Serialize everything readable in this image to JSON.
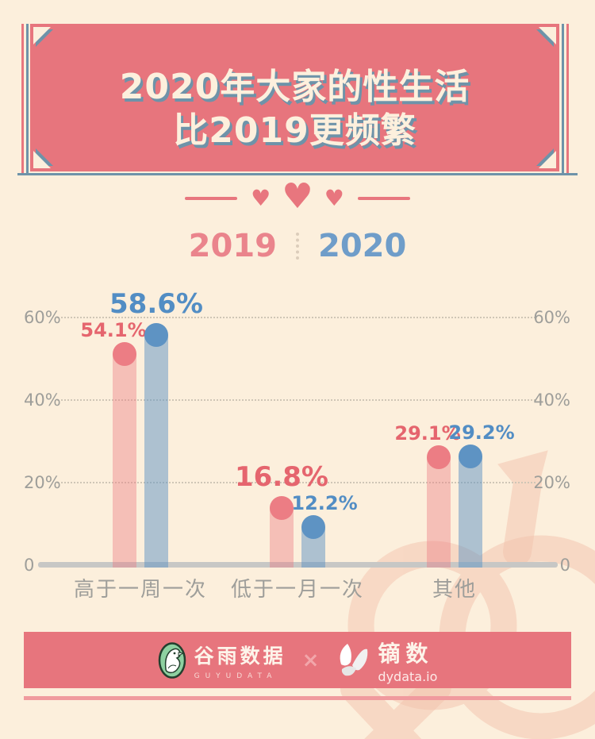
{
  "page": {
    "background": "#fcefdc"
  },
  "header": {
    "title_line1": "2020年大家的性生活",
    "title_line2": "比2019更频繁",
    "banner_color": "#e7757d",
    "shadow_color": "#6e93a9"
  },
  "decor": {
    "heart": "♥"
  },
  "legend": {
    "year_2019": "2019",
    "year_2020": "2020",
    "color_2019": "#ea848c",
    "color_2020": "#6f9dc9"
  },
  "chart_data": {
    "type": "bar",
    "title": "2020年大家的性生活比2019更频繁",
    "categories": [
      "高于一周一次",
      "低于一月一次",
      "其他"
    ],
    "series": [
      {
        "name": "2019",
        "color": "#ec7d84",
        "bar_color": "rgba(236,125,132,0.42)",
        "label_color": "#e5656e",
        "values": [
          54.1,
          16.8,
          29.1
        ],
        "labels": [
          "54.1%",
          "16.8%",
          "29.1%"
        ],
        "emphasis": [
          false,
          true,
          false
        ]
      },
      {
        "name": "2020",
        "color": "#5e93c3",
        "bar_color": "rgba(94,147,195,0.5)",
        "label_color": "#528dc4",
        "values": [
          58.6,
          12.2,
          29.2
        ],
        "labels": [
          "58.6%",
          "12.2%",
          "29.2%"
        ],
        "emphasis": [
          true,
          false,
          false
        ]
      }
    ],
    "ylim": [
      0,
      65
    ],
    "yticks": [
      {
        "value": 0,
        "label": "0"
      },
      {
        "value": 20,
        "label": "20%"
      },
      {
        "value": 40,
        "label": "40%"
      },
      {
        "value": 60,
        "label": "60%"
      }
    ],
    "grid": "horizontal-dotted",
    "legend_position": "top",
    "axis_labels_both_sides": true
  },
  "footer": {
    "guyu_logo": "谷雨数据",
    "guyu_sub": "GUYUDATA",
    "separator": "×",
    "dy_logo": "镝数",
    "dy_sub": "dydata.io"
  }
}
